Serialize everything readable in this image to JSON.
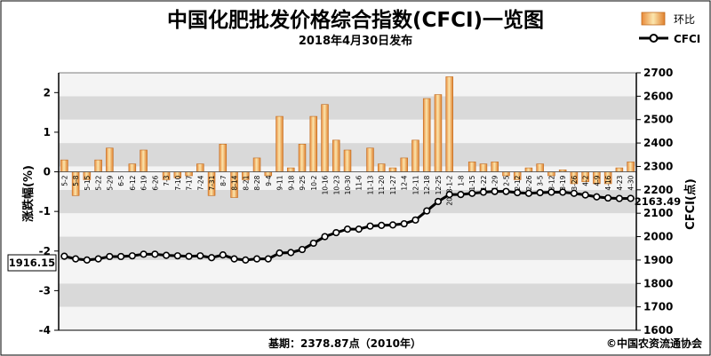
{
  "chart_data": {
    "type": "bar+line",
    "title": "中国化肥批发价格综合指数(CFCI)一览图",
    "subtitle": "2018年4月30日发布",
    "legend": {
      "placement": "top-right",
      "bar_label": "环比",
      "line_label": "CFCI"
    },
    "left_axis": {
      "label": "涨跌幅(%)",
      "range": [
        -4,
        2.5
      ],
      "ticks": [
        -4,
        -3,
        -2,
        -1,
        0,
        1,
        2
      ]
    },
    "right_axis": {
      "label": "CFCI(点)",
      "range": [
        1600,
        2700
      ],
      "ticks": [
        1600,
        1700,
        1800,
        1900,
        2000,
        2100,
        2200,
        2300,
        2400,
        2500,
        2600,
        2700
      ]
    },
    "categories": [
      "5-2",
      "5-8",
      "5-15",
      "5-22",
      "5-29",
      "6-5",
      "6-12",
      "6-19",
      "6-26",
      "7-3",
      "7-10",
      "7-17",
      "7-24",
      "7-31",
      "8-7",
      "8-14",
      "8-21",
      "8-28",
      "9-4",
      "9-11",
      "9-18",
      "9-25",
      "10-2",
      "10-16",
      "10-23",
      "10-30",
      "11-6",
      "11-13",
      "11-20",
      "11-27",
      "12-4",
      "12-11",
      "12-18",
      "12-25",
      "2018-1-2",
      "1-8",
      "1-15",
      "1-22",
      "1-29",
      "2-5",
      "2-12",
      "2-26",
      "3-5",
      "3-12",
      "3-19",
      "3-26",
      "4-2",
      "4-9",
      "4-16",
      "4-23",
      "4-30"
    ],
    "bar_series": {
      "name": "环比",
      "values": [
        0.3,
        -0.6,
        -0.2,
        0.3,
        0.6,
        0.0,
        0.2,
        0.55,
        0.0,
        -0.2,
        -0.15,
        -0.1,
        0.2,
        -0.6,
        0.7,
        -0.65,
        -0.2,
        0.35,
        -0.1,
        1.4,
        0.1,
        0.7,
        1.4,
        1.7,
        0.8,
        0.55,
        0.0,
        0.6,
        0.2,
        0.1,
        0.35,
        0.8,
        1.85,
        1.95,
        2.4,
        0.0,
        0.25,
        0.2,
        0.25,
        -0.1,
        -0.2,
        0.1,
        0.2,
        -0.1,
        0.05,
        -0.3,
        -0.25,
        -0.3,
        -0.3,
        0.1,
        0.25
      ]
    },
    "line_series": {
      "name": "CFCI",
      "values": [
        1916.15,
        1905,
        1900,
        1905,
        1915,
        1915,
        1918,
        1925,
        1925,
        1920,
        1918,
        1916,
        1918,
        1910,
        1922,
        1905,
        1900,
        1905,
        1905,
        1930,
        1932,
        1945,
        1972,
        2000,
        2017,
        2032,
        2032,
        2045,
        2048,
        2050,
        2055,
        2071,
        2110,
        2150,
        2180,
        2180,
        2185,
        2190,
        2193,
        2193,
        2188,
        2185,
        2188,
        2190,
        2190,
        2185,
        2178,
        2170,
        2165,
        2163,
        2163.49
      ]
    },
    "start_value_label": "1916.15",
    "end_value_label": "2163.49",
    "footer": {
      "base": "基期：2378.87点（2010年）",
      "source": "©中国农资流通协会"
    },
    "grid": "horizontal-bands",
    "colors": {
      "bar_fill_top": "#fbe3a2",
      "bar_fill_bottom": "#e98a3a",
      "bar_stroke": "#c06b1f",
      "line": "#000000",
      "marker_fill": "#ffffff",
      "band_dark": "#d9d9d9",
      "band_light": "#f4f4f4"
    }
  }
}
